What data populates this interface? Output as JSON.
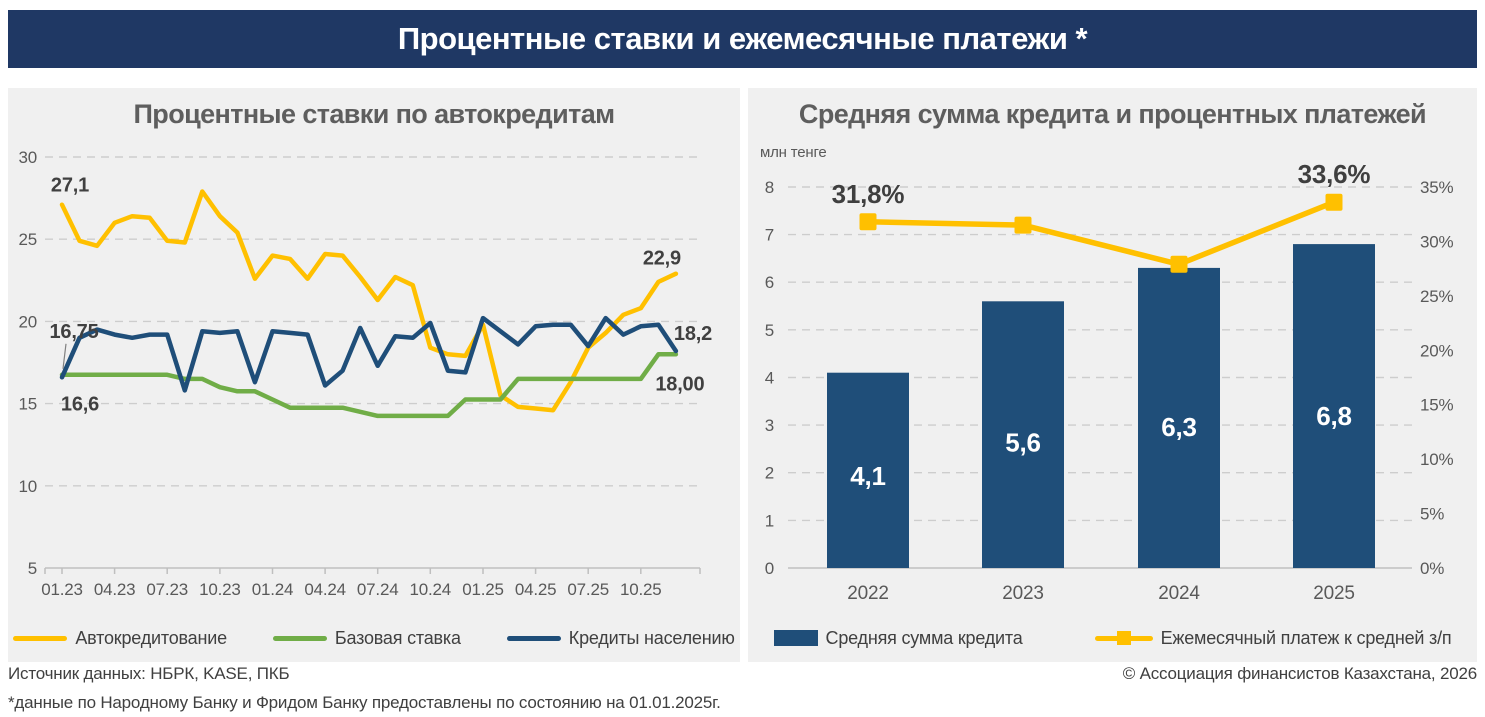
{
  "header": {
    "title": "Процентные ставки и ежемесячные платежи *"
  },
  "colors": {
    "header_bg": "#1F3864",
    "panel_bg": "#F0F0F0",
    "yellow": "#FFC000",
    "green": "#70AD47",
    "navy": "#1F4E79",
    "grid": "#CDCDCD",
    "axis_text": "#595959",
    "label_text": "#404040"
  },
  "footer": {
    "source": "Источник данных: НБРК, KASE, ПКБ",
    "copyright": "© Ассоциация финансистов Казахстана, 2026",
    "footnote": "*данные по Народному Банку и Фридом Банку предоставлены по состоянию на 01.01.2025г."
  },
  "chart_data": [
    {
      "type": "line",
      "title": "Процентные ставки по автокредитам",
      "x": [
        "01.23",
        "02.23",
        "03.23",
        "04.23",
        "05.23",
        "06.23",
        "07.23",
        "08.23",
        "09.23",
        "10.23",
        "11.23",
        "12.23",
        "01.24",
        "02.24",
        "03.24",
        "04.24",
        "05.24",
        "06.24",
        "07.24",
        "08.24",
        "09.24",
        "10.24",
        "11.24",
        "12.24",
        "01.25",
        "02.25",
        "03.25",
        "04.25",
        "05.25",
        "06.25",
        "07.25",
        "08.25",
        "09.25",
        "10.25",
        "11.25",
        "12.25"
      ],
      "x_tick_every": 3,
      "ylim": [
        5,
        30
      ],
      "yticks": [
        30,
        25,
        20,
        15,
        10,
        5
      ],
      "grid": true,
      "legend_position": "bottom",
      "series": [
        {
          "name": "Автокредитование",
          "color": "#FFC000",
          "values": [
            27.1,
            24.9,
            24.6,
            26.0,
            26.4,
            26.3,
            24.9,
            24.8,
            27.9,
            26.4,
            25.4,
            22.6,
            24.0,
            23.8,
            22.6,
            24.1,
            24.0,
            22.7,
            21.3,
            22.7,
            22.2,
            18.4,
            18.0,
            17.9,
            19.8,
            15.5,
            14.8,
            14.7,
            14.6,
            16.3,
            18.4,
            19.3,
            20.4,
            20.8,
            22.4,
            22.9
          ]
        },
        {
          "name": "Базовая ставка",
          "color": "#70AD47",
          "values": [
            16.75,
            16.75,
            16.75,
            16.75,
            16.75,
            16.75,
            16.75,
            16.5,
            16.5,
            16.0,
            15.75,
            15.75,
            15.25,
            14.75,
            14.75,
            14.75,
            14.75,
            14.5,
            14.25,
            14.25,
            14.25,
            14.25,
            14.25,
            15.25,
            15.25,
            15.25,
            16.5,
            16.5,
            16.5,
            16.5,
            16.5,
            16.5,
            16.5,
            16.5,
            18.0,
            18.0
          ]
        },
        {
          "name": "Кредиты населению",
          "color": "#1F4E79",
          "values": [
            16.6,
            19.0,
            19.5,
            19.2,
            19.0,
            19.2,
            19.2,
            15.8,
            19.4,
            19.3,
            19.4,
            16.3,
            19.4,
            19.3,
            19.2,
            16.1,
            17.0,
            19.6,
            17.3,
            19.1,
            19.0,
            19.9,
            17.0,
            16.9,
            20.2,
            19.4,
            18.6,
            19.7,
            19.8,
            19.8,
            18.5,
            20.2,
            19.2,
            19.7,
            19.8,
            18.2
          ]
        }
      ],
      "annotations": [
        {
          "series": 0,
          "point": "first",
          "text": "27,1"
        },
        {
          "series": 1,
          "point": "first",
          "text": "16,75",
          "leader": true
        },
        {
          "series": 2,
          "point": "first",
          "text": "16,6"
        },
        {
          "series": 0,
          "point": "last",
          "text": "22,9"
        },
        {
          "series": 2,
          "point": "last",
          "text": "18,2"
        },
        {
          "series": 1,
          "point": "last",
          "text": "18,00"
        }
      ]
    },
    {
      "type": "bar+line",
      "title": "Средняя сумма кредита и процентных платежей",
      "unit_label": "млн тенге",
      "categories": [
        "2022",
        "2023",
        "2024",
        "2025"
      ],
      "left_ylim": [
        0,
        8
      ],
      "left_yticks": [
        8,
        7,
        6,
        5,
        4,
        3,
        2,
        1,
        0
      ],
      "right_ylim": [
        0,
        35
      ],
      "right_yticks": [
        "35%",
        "30%",
        "25%",
        "20%",
        "15%",
        "10%",
        "5%",
        "0%"
      ],
      "grid": true,
      "legend_position": "bottom",
      "bar_series": {
        "name": "Средняя сумма кредита",
        "color": "#1F4E79",
        "values": [
          4.1,
          5.6,
          6.3,
          6.8
        ],
        "labels": [
          "4,1",
          "5,6",
          "6,3",
          "6,8"
        ]
      },
      "line_series": {
        "name": "Ежемесячный платеж к средней з/п",
        "color": "#FFC000",
        "values": [
          31.8,
          31.5,
          27.9,
          33.6
        ],
        "labels": [
          "31,8%",
          null,
          null,
          "33,6%"
        ]
      }
    }
  ]
}
